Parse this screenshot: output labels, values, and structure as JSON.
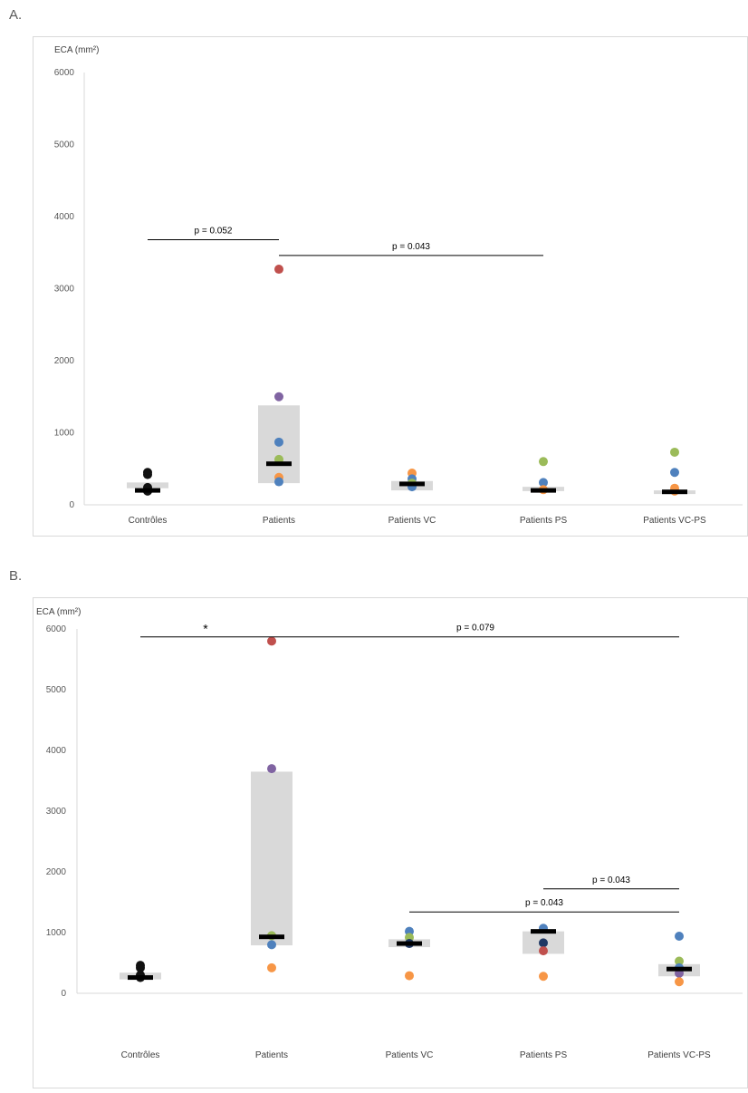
{
  "panels": [
    {
      "label": "A."
    },
    {
      "label": "B."
    }
  ],
  "colors": {
    "control": "#111111",
    "red": "#c0504d",
    "purple": "#8064a2",
    "blue": "#4f81bd",
    "green": "#9bbb59",
    "orange": "#f79646",
    "navy": "#1f3864",
    "box": "#d9d9d9",
    "median": "#000000"
  },
  "chart_data": [
    {
      "type": "scatter",
      "ylabel": "ECA (mm²)",
      "ylim": [
        0,
        6000
      ],
      "yticks": [
        0,
        1000,
        2000,
        3000,
        4000,
        5000,
        6000
      ],
      "categories": [
        "Contrôles",
        "Patients",
        "Patients VC",
        "Patients PS",
        "Patients VC-PS"
      ],
      "groups": [
        {
          "category": "Contrôles",
          "box": [
            230,
            310
          ],
          "median": 200,
          "points": [
            {
              "y": 450,
              "color": "control"
            },
            {
              "y": 420,
              "color": "control"
            },
            {
              "y": 240,
              "color": "control"
            },
            {
              "y": 200,
              "color": "control"
            },
            {
              "y": 190,
              "color": "control"
            }
          ]
        },
        {
          "category": "Patients",
          "box": [
            300,
            1380
          ],
          "median": 570,
          "points": [
            {
              "y": 3270,
              "color": "red"
            },
            {
              "y": 1500,
              "color": "purple"
            },
            {
              "y": 870,
              "color": "blue"
            },
            {
              "y": 630,
              "color": "green"
            },
            {
              "y": 380,
              "color": "orange"
            },
            {
              "y": 320,
              "color": "blue"
            }
          ]
        },
        {
          "category": "Patients VC",
          "box": [
            200,
            330
          ],
          "median": 290,
          "points": [
            {
              "y": 440,
              "color": "orange"
            },
            {
              "y": 360,
              "color": "blue"
            },
            {
              "y": 300,
              "color": "green"
            },
            {
              "y": 250,
              "color": "blue"
            }
          ]
        },
        {
          "category": "Patients PS",
          "box": [
            190,
            250
          ],
          "median": 200,
          "points": [
            {
              "y": 600,
              "color": "green"
            },
            {
              "y": 310,
              "color": "blue"
            },
            {
              "y": 210,
              "color": "orange"
            }
          ]
        },
        {
          "category": "Patients VC-PS",
          "box": [
            150,
            200
          ],
          "median": 180,
          "points": [
            {
              "y": 730,
              "color": "green"
            },
            {
              "y": 450,
              "color": "blue"
            },
            {
              "y": 230,
              "color": "orange"
            },
            {
              "y": 190,
              "color": "orange"
            }
          ]
        }
      ],
      "annotations": [
        {
          "text": "p = 0.052",
          "from": 0,
          "to": 1,
          "y": 3680
        },
        {
          "text": "p = 0.043",
          "from": 1,
          "to": 3,
          "y": 3460
        }
      ]
    },
    {
      "type": "scatter",
      "ylabel": "ECA (mm²)",
      "ylim": [
        0,
        6000
      ],
      "yticks": [
        0,
        1000,
        2000,
        3000,
        4000,
        5000,
        6000
      ],
      "categories": [
        "Contrôles",
        "Patients",
        "Patients VC",
        "Patients PS",
        "Patients VC-PS"
      ],
      "groups": [
        {
          "category": "Contrôles",
          "box": [
            230,
            340
          ],
          "median": 260,
          "points": [
            {
              "y": 460,
              "color": "control"
            },
            {
              "y": 420,
              "color": "control"
            },
            {
              "y": 300,
              "color": "control"
            },
            {
              "y": 260,
              "color": "control"
            }
          ]
        },
        {
          "category": "Patients",
          "box": [
            790,
            3650
          ],
          "median": 930,
          "points": [
            {
              "y": 5800,
              "color": "red"
            },
            {
              "y": 3700,
              "color": "purple"
            },
            {
              "y": 950,
              "color": "green"
            },
            {
              "y": 800,
              "color": "blue"
            },
            {
              "y": 420,
              "color": "orange"
            }
          ]
        },
        {
          "category": "Patients VC",
          "box": [
            760,
            890
          ],
          "median": 820,
          "points": [
            {
              "y": 1020,
              "color": "blue"
            },
            {
              "y": 920,
              "color": "green"
            },
            {
              "y": 820,
              "color": "navy"
            },
            {
              "y": 290,
              "color": "orange"
            }
          ]
        },
        {
          "category": "Patients PS",
          "box": [
            650,
            1020
          ],
          "median": 1020,
          "points": [
            {
              "y": 1070,
              "color": "blue"
            },
            {
              "y": 830,
              "color": "navy"
            },
            {
              "y": 700,
              "color": "red"
            },
            {
              "y": 280,
              "color": "orange"
            }
          ]
        },
        {
          "category": "Patients VC-PS",
          "box": [
            280,
            480
          ],
          "median": 400,
          "points": [
            {
              "y": 940,
              "color": "blue"
            },
            {
              "y": 530,
              "color": "green"
            },
            {
              "y": 420,
              "color": "blue"
            },
            {
              "y": 330,
              "color": "purple"
            },
            {
              "y": 190,
              "color": "orange"
            }
          ]
        }
      ],
      "annotations": [
        {
          "text": "*",
          "from": 0,
          "to": 1,
          "y": 5870
        },
        {
          "text": "p = 0.079",
          "from": 1,
          "to": 4,
          "y": 5870
        },
        {
          "text": "p = 0.043",
          "from": 3,
          "to": 4,
          "y": 1720
        },
        {
          "text": "p = 0.043",
          "from": 2,
          "to": 4,
          "y": 1340
        }
      ]
    }
  ]
}
